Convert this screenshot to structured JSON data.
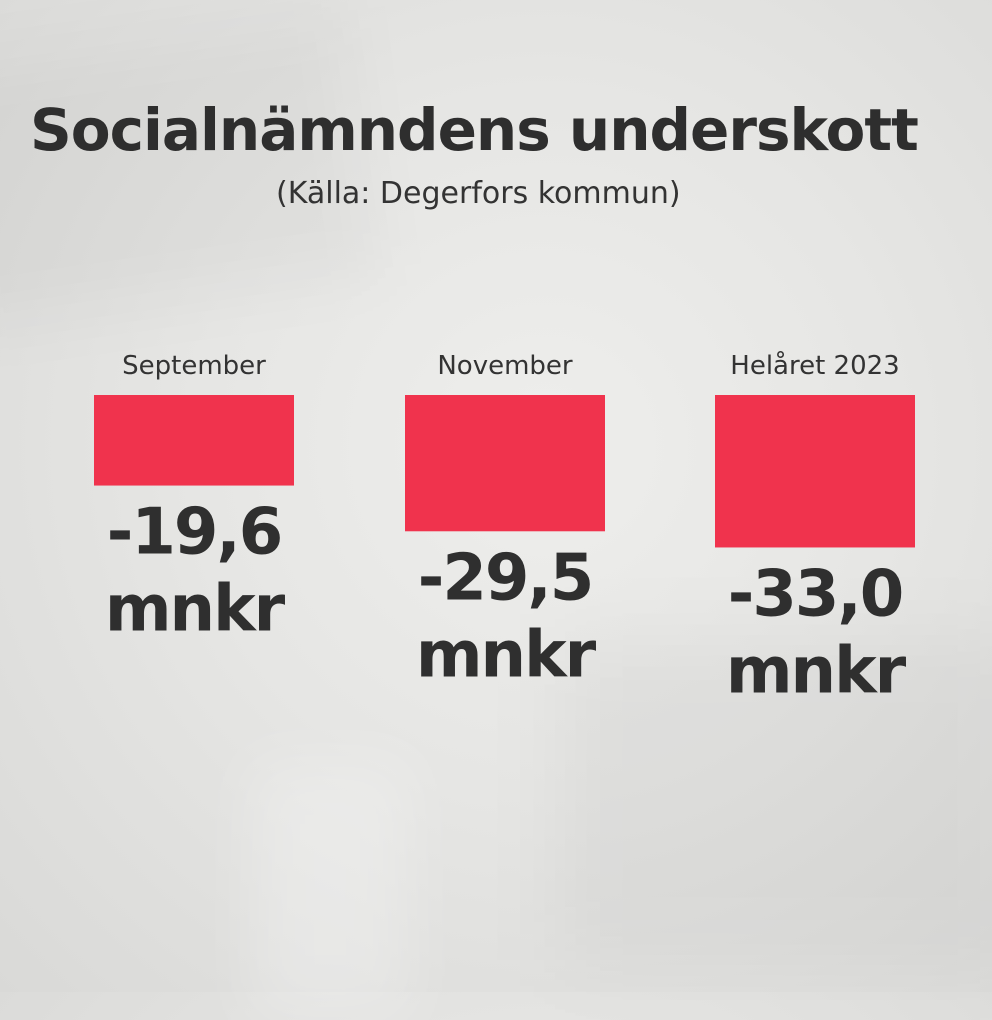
{
  "chart_data": {
    "type": "bar",
    "title": "Socialnämndens underskott",
    "subtitle": "(Källa: Degerfors kommun)",
    "categories": [
      "September",
      "November",
      "Helåret 2023"
    ],
    "values": [
      -19.6,
      -29.5,
      -33.0
    ],
    "value_labels": [
      "-19,6",
      "-29,5",
      "-33,0"
    ],
    "unit": "mnkr",
    "orientation": "downward-from-baseline",
    "bar_color": "#f0334d"
  }
}
